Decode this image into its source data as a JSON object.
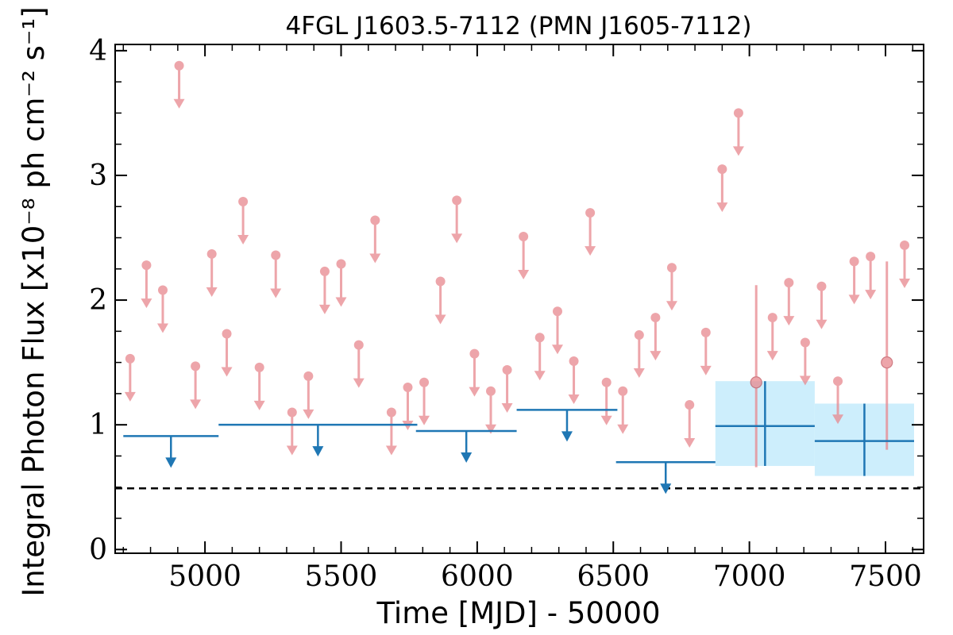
{
  "chart_data": {
    "type": "scatter",
    "title": "4FGL J1603.5-7112 (PMN J1605-7112)",
    "xlabel": "Time [MJD] - 50000",
    "ylabel": "Integral Photon Flux [x10⁻⁸ ph cm⁻² s⁻¹]",
    "xlim": [
      4670,
      7640
    ],
    "ylim": [
      -0.03,
      4.05
    ],
    "x_ticks": [
      5000,
      5500,
      6000,
      6500,
      7000,
      7500
    ],
    "y_ticks": [
      0,
      1,
      2,
      3,
      4
    ],
    "x_minor_step": 100,
    "y_minor_step": 0.25,
    "reference_line": {
      "y": 0.49,
      "style": "dashed",
      "color": "#000000"
    },
    "colors": {
      "short_bin": "#e8888e",
      "long_bin": "#1f77b4",
      "error_band": "#cdeefc"
    },
    "series": [
      {
        "style": "upper_limit_points",
        "color": "#e8888e",
        "x": [
          4725,
          4785,
          4845,
          4905,
          4965,
          5025,
          5080,
          5140,
          5200,
          5260,
          5320,
          5380,
          5440,
          5500,
          5565,
          5625,
          5685,
          5745,
          5805,
          5865,
          5925,
          5990,
          6050,
          6110,
          6170,
          6230,
          6295,
          6355,
          6415,
          6475,
          6535,
          6595,
          6655,
          6715,
          6780,
          6840,
          6900,
          6960,
          7085,
          7145,
          7205,
          7265,
          7325,
          7385,
          7445,
          7570
        ],
        "y": [
          1.53,
          2.28,
          2.08,
          3.88,
          1.47,
          2.37,
          1.73,
          2.79,
          1.46,
          2.36,
          1.1,
          1.39,
          2.23,
          2.29,
          1.64,
          2.64,
          1.1,
          1.3,
          1.34,
          2.15,
          2.8,
          1.57,
          1.27,
          1.44,
          2.51,
          1.7,
          1.91,
          1.51,
          2.7,
          1.34,
          1.27,
          1.72,
          1.86,
          2.26,
          1.16,
          1.74,
          3.05,
          3.5,
          1.86,
          2.14,
          1.66,
          2.11,
          1.35,
          2.31,
          2.35,
          2.44
        ]
      },
      {
        "style": "detections",
        "color": "#e8888e",
        "x": [
          7025,
          7505
        ],
        "y": [
          1.34,
          1.5
        ],
        "y_low": [
          0.66,
          0.8
        ],
        "y_high": [
          2.12,
          2.31
        ]
      },
      {
        "style": "upper_limit_bins",
        "color": "#1f77b4",
        "x_start": [
          4700,
          5050,
          5775,
          6145,
          6510
        ],
        "x_end": [
          5050,
          5780,
          6145,
          6515,
          6875
        ],
        "y": [
          0.91,
          1.0,
          0.95,
          1.12,
          0.7
        ]
      },
      {
        "style": "detection_bins",
        "color": "#1f77b4",
        "x_start": [
          6875,
          7240
        ],
        "x_end": [
          7240,
          7605
        ],
        "y": [
          0.99,
          0.87
        ],
        "y_low": [
          0.67,
          0.59
        ],
        "y_high": [
          1.35,
          1.17
        ]
      }
    ]
  }
}
